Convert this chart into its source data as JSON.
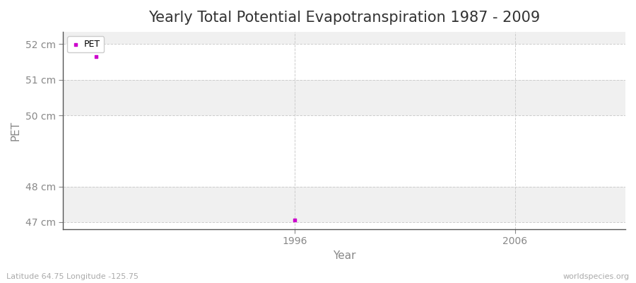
{
  "title": "Yearly Total Potential Evapotranspiration 1987 - 2009",
  "xlabel": "Year",
  "ylabel": "PET",
  "background_color": "#ffffff",
  "plot_bg_color": "#ffffff",
  "band_color": "#f0f0f0",
  "point_color": "#cc00cc",
  "legend_label": "PET",
  "x_data": [
    1987,
    1996
  ],
  "y_data": [
    51.65,
    47.05
  ],
  "xlim": [
    1985.5,
    2011
  ],
  "ylim": [
    46.8,
    52.35
  ],
  "yticks": [
    47,
    48,
    50,
    51,
    52
  ],
  "ytick_labels": [
    "47 cm",
    "48 cm",
    "50 cm",
    "51 cm",
    "52 cm"
  ],
  "xticks": [
    1996,
    2006
  ],
  "grid_color": "#cccccc",
  "title_fontsize": 15,
  "axis_label_fontsize": 11,
  "tick_fontsize": 10,
  "watermark_left": "Latitude 64.75 Longitude -125.75",
  "watermark_right": "worldspecies.org"
}
